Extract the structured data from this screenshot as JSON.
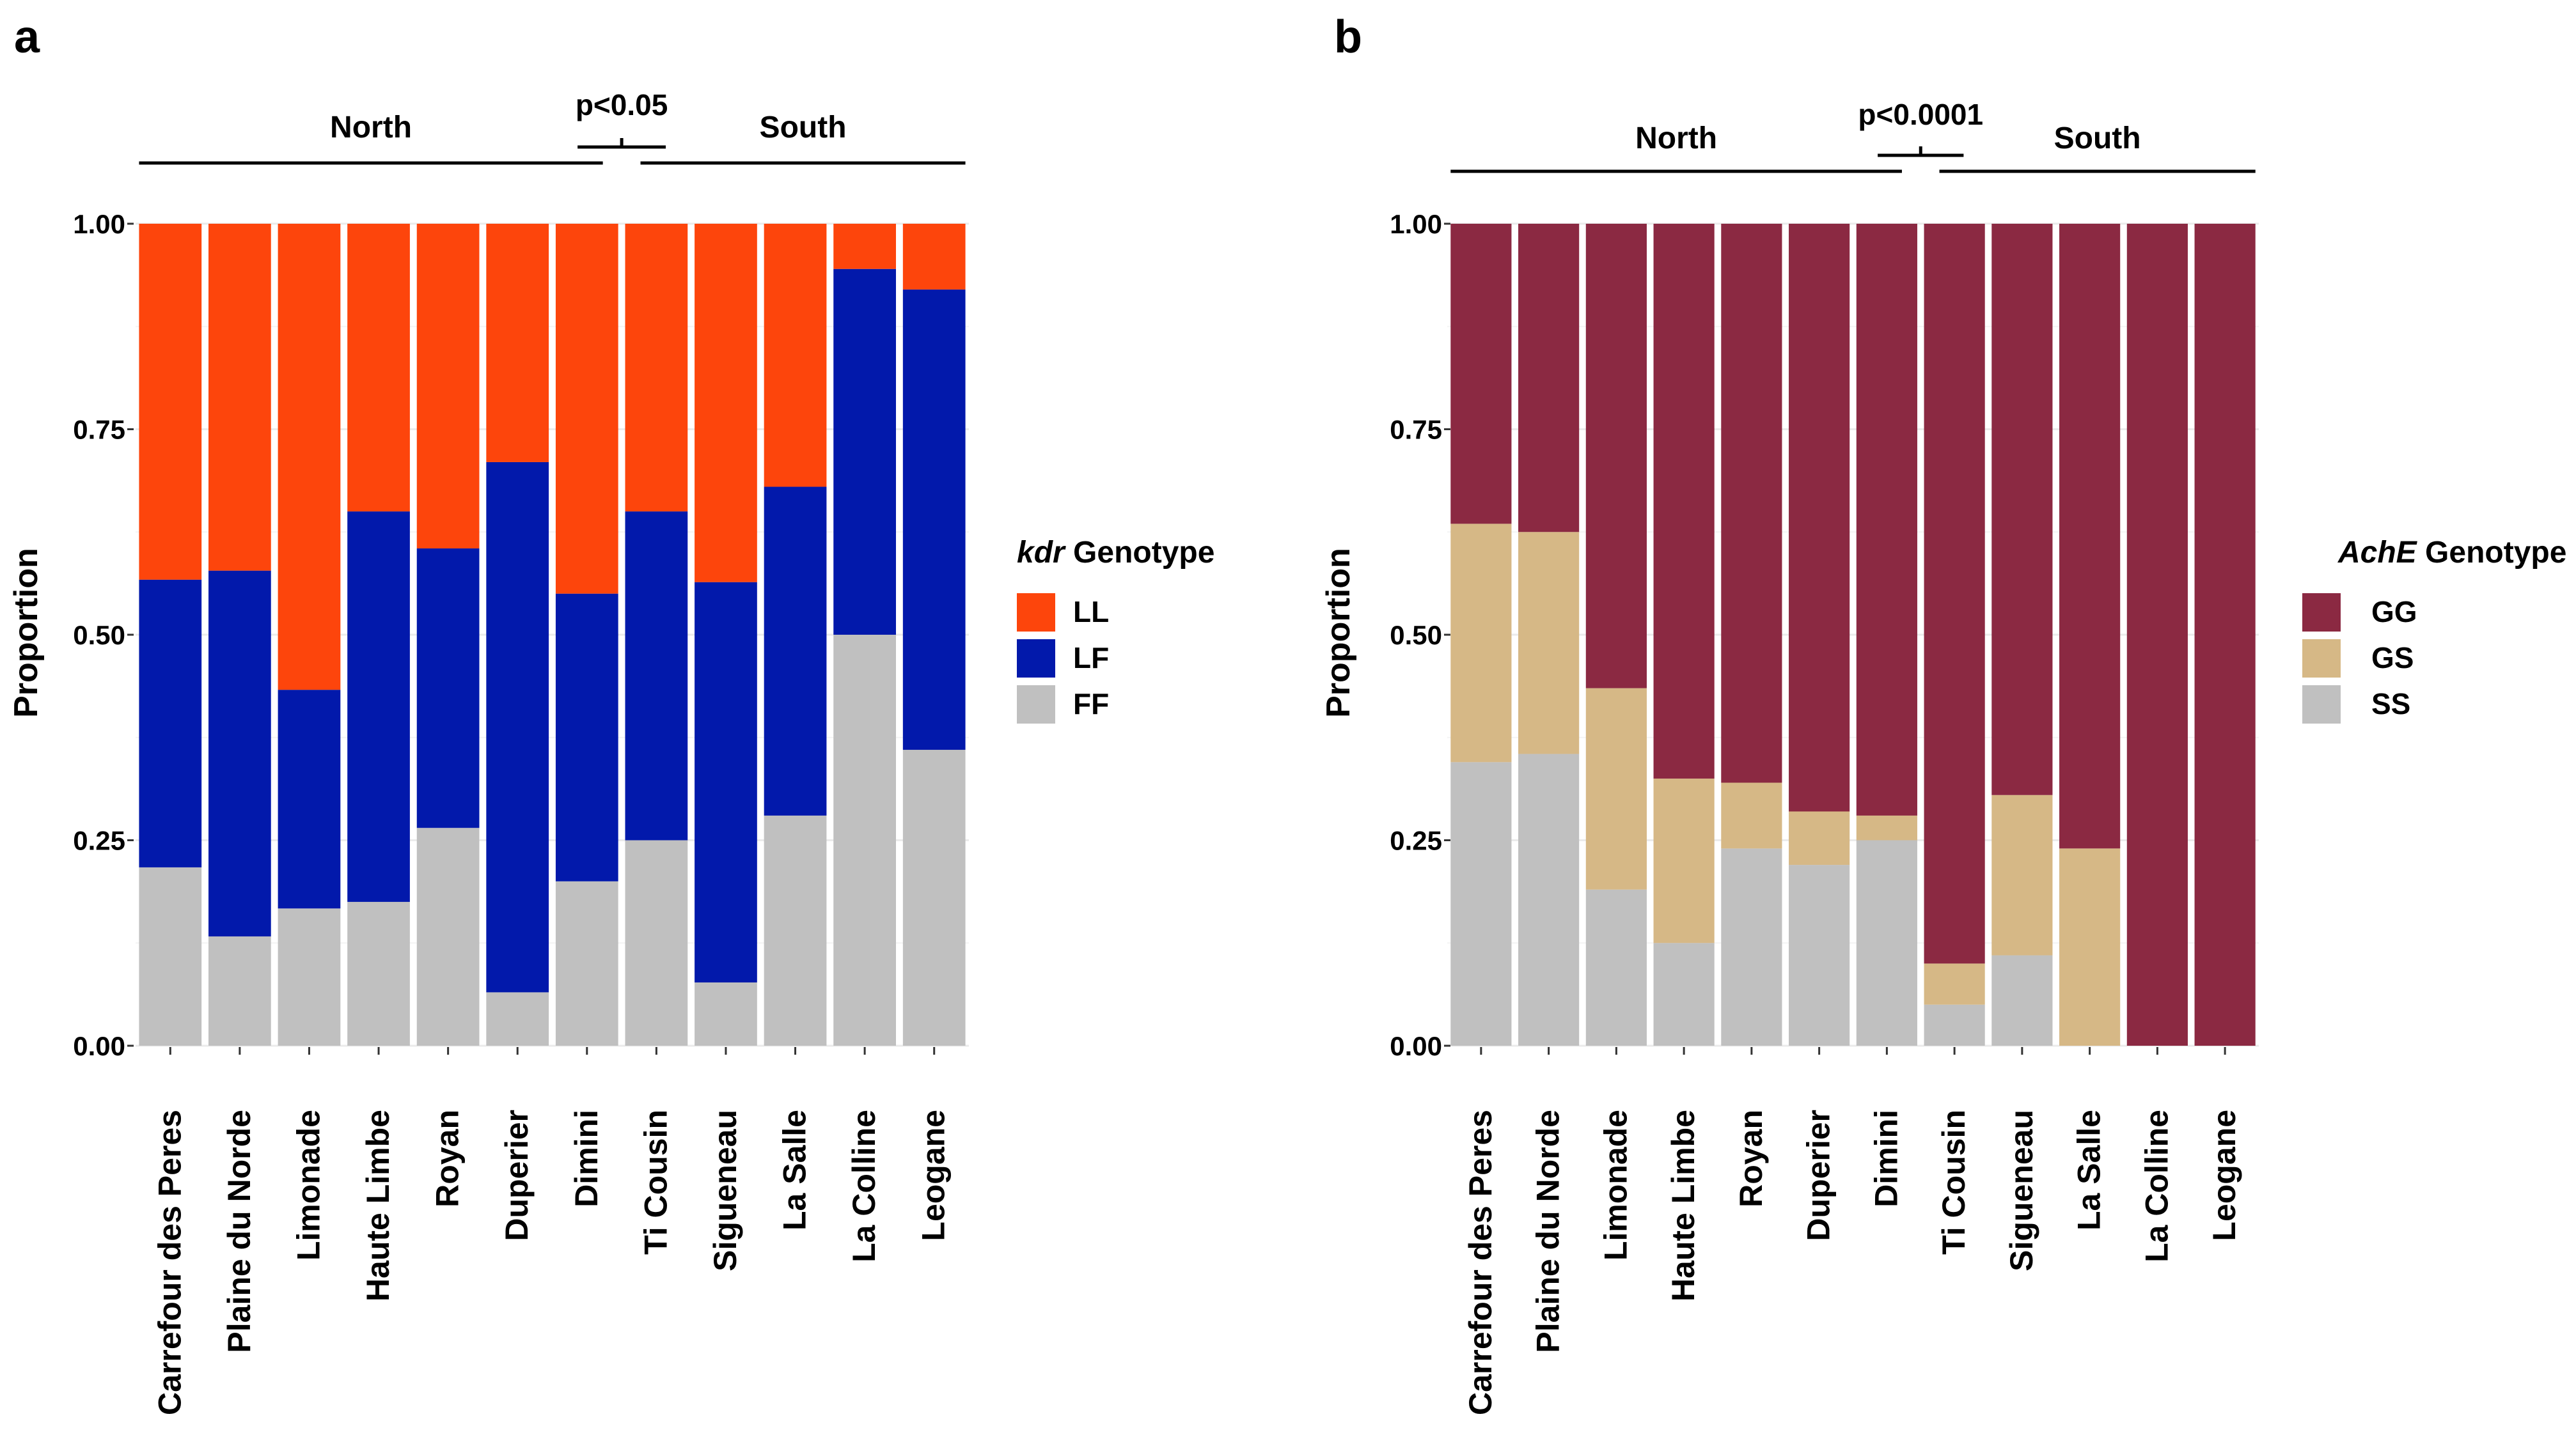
{
  "chart_data": [
    {
      "panel_label": "a",
      "type": "bar",
      "stacked": true,
      "ylabel": "Proportion",
      "ylim": [
        0,
        1
      ],
      "yticks": [
        "0.00",
        "0.25",
        "0.50",
        "0.75",
        "1.00"
      ],
      "grid": true,
      "categories": [
        "Carrefour des Peres",
        "Plaine du Norde",
        "Limonade",
        "Haute Limbe",
        "Royan",
        "Duperier",
        "Dimini",
        "Ti Cousin",
        "Sigueneau",
        "La Salle",
        "La Colline",
        "Leogane"
      ],
      "legend": {
        "title_italic": "kdr",
        "title_rest": " Genotype",
        "position": "right"
      },
      "series": [
        {
          "name": "FF",
          "color": "#c0c0c0",
          "values": [
            0.217,
            0.133,
            0.167,
            0.175,
            0.265,
            0.065,
            0.2,
            0.25,
            0.077,
            0.28,
            0.5,
            0.36
          ]
        },
        {
          "name": "LF",
          "color": "#0219ab",
          "values": [
            0.35,
            0.445,
            0.266,
            0.475,
            0.34,
            0.645,
            0.35,
            0.4,
            0.487,
            0.4,
            0.445,
            0.56
          ]
        },
        {
          "name": "LL",
          "color": "#fd450c",
          "values": [
            0.433,
            0.422,
            0.567,
            0.35,
            0.395,
            0.29,
            0.45,
            0.35,
            0.436,
            0.32,
            0.055,
            0.08
          ]
        }
      ],
      "legend_order": [
        "LL",
        "LF",
        "FF"
      ],
      "groups": [
        {
          "label": "North",
          "from": 0,
          "to": 6
        },
        {
          "label": "South",
          "from": 7,
          "to": 11
        }
      ],
      "comparison": "p<0.05"
    },
    {
      "panel_label": "b",
      "type": "bar",
      "stacked": true,
      "ylabel": "Proportion",
      "ylim": [
        0,
        1
      ],
      "yticks": [
        "0.00",
        "0.25",
        "0.50",
        "0.75",
        "1.00"
      ],
      "grid": true,
      "categories": [
        "Carrefour des Peres",
        "Plaine du Norde",
        "Limonade",
        "Haute Limbe",
        "Royan",
        "Duperier",
        "Dimini",
        "Ti Cousin",
        "Sigueneau",
        "La Salle",
        "La Colline",
        "Leogane"
      ],
      "legend": {
        "title_italic": "AchE",
        "title_rest": " Genotype",
        "position": "right"
      },
      "series": [
        {
          "name": "SS",
          "color": "#c0c0c0",
          "values": [
            0.345,
            0.355,
            0.19,
            0.125,
            0.24,
            0.22,
            0.25,
            0.05,
            0.11,
            0.0,
            0.0,
            0.0
          ]
        },
        {
          "name": "GS",
          "color": "#d6b886",
          "values": [
            0.29,
            0.27,
            0.245,
            0.2,
            0.08,
            0.065,
            0.03,
            0.05,
            0.195,
            0.24,
            0.0,
            0.0
          ]
        },
        {
          "name": "GG",
          "color": "#8b2942",
          "values": [
            0.365,
            0.375,
            0.565,
            0.675,
            0.68,
            0.715,
            0.72,
            0.9,
            0.695,
            0.76,
            1.0,
            1.0
          ]
        }
      ],
      "legend_order": [
        "GG",
        "GS",
        "SS"
      ],
      "groups": [
        {
          "label": "North",
          "from": 0,
          "to": 6
        },
        {
          "label": "South",
          "from": 7,
          "to": 11
        }
      ],
      "comparison": "p<0.0001"
    }
  ]
}
